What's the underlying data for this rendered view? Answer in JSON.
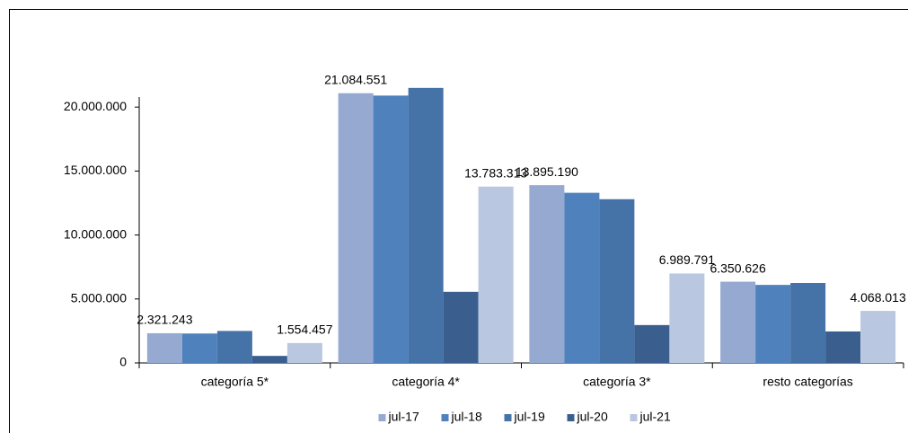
{
  "chart_data": {
    "type": "bar",
    "categories": [
      "categoría 5*",
      "categoría 4*",
      "categoría 3*",
      "resto categorías"
    ],
    "series": [
      {
        "name": "jul-17",
        "color": "#95a9d1",
        "values": [
          2321243,
          21084551,
          13895190,
          6350626
        ],
        "value_labels": [
          "2.321.243",
          "21.084.551",
          "13.895.190",
          "6.350.626"
        ]
      },
      {
        "name": "jul-18",
        "color": "#4f81bd",
        "values": [
          2300000,
          20900000,
          13300000,
          6100000
        ]
      },
      {
        "name": "jul-19",
        "color": "#4572a7",
        "values": [
          2500000,
          21500000,
          12800000,
          6250000
        ]
      },
      {
        "name": "jul-20",
        "color": "#3a5f8f",
        "values": [
          550000,
          5560000,
          2960000,
          2460000
        ]
      },
      {
        "name": "jul-21",
        "color": "#b9c7e0",
        "values": [
          1554457,
          13783313,
          6989791,
          4068013
        ],
        "value_labels": [
          "1.554.457",
          "13.783.313",
          "6.989.791",
          "4.068.013"
        ]
      }
    ],
    "ylim": [
      0,
      25000000
    ],
    "yticks": [
      0,
      {
        "value": 5000000,
        "label": "5.000.000"
      },
      {
        "value": 10000000,
        "label": "10.000.000"
      },
      {
        "value": 15000000,
        "label": "15.000.000"
      },
      {
        "value": 20000000,
        "label": "20.000.000"
      }
    ],
    "grid": false,
    "legend": "bottom"
  }
}
